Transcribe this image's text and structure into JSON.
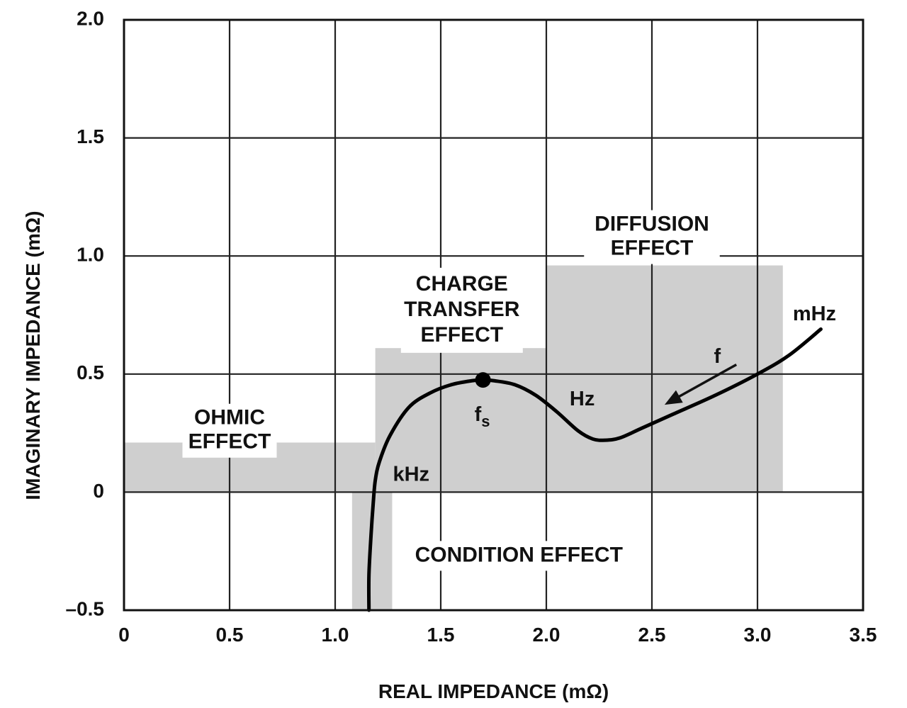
{
  "chart_data": {
    "type": "line",
    "title": "",
    "xlabel": "REAL IMPEDANCE (mΩ)",
    "ylabel": "IMAGINARY IMPEDANCE (mΩ)",
    "xlim": [
      0,
      3.5
    ],
    "ylim": [
      -0.5,
      2.0
    ],
    "x_ticks": [
      0,
      0.5,
      1.0,
      1.5,
      2.0,
      2.5,
      3.0,
      3.5
    ],
    "x_tick_labels": [
      "0",
      "0.5",
      "1.0",
      "1.5",
      "2.0",
      "2.5",
      "3.0",
      "3.5"
    ],
    "y_ticks": [
      -0.5,
      0,
      0.5,
      1.0,
      1.5,
      2.0
    ],
    "y_tick_labels": [
      "–0.5",
      "0",
      "0.5",
      "1.0",
      "1.5",
      "2.0"
    ],
    "grid": true,
    "colors": {
      "curve": "#000000",
      "region": "#cfcfcf",
      "grid": "#222222"
    },
    "regions": [
      {
        "name": "OHMIC EFFECT",
        "lines": [
          "OHMIC",
          "EFFECT"
        ],
        "x": [
          0,
          1.19
        ],
        "y": [
          0,
          0.21
        ]
      },
      {
        "name": "CONDITION EFFECT",
        "lines": [
          "CONDITION EFFECT"
        ],
        "x": [
          1.08,
          1.27
        ],
        "y": [
          -0.5,
          0
        ]
      },
      {
        "name": "CHARGE TRANSFER EFFECT",
        "lines": [
          "CHARGE",
          "TRANSFER",
          "EFFECT"
        ],
        "x": [
          1.19,
          2.0
        ],
        "y": [
          0,
          0.61
        ]
      },
      {
        "name": "DIFFUSION EFFECT",
        "lines": [
          "DIFFUSION",
          "EFFECT"
        ],
        "x": [
          2.0,
          3.12
        ],
        "y": [
          0,
          0.96
        ]
      }
    ],
    "series": [
      {
        "x": [
          1.16,
          1.16,
          1.17,
          1.18,
          1.19,
          1.21,
          1.26,
          1.35,
          1.45,
          1.55,
          1.65,
          1.7,
          1.75,
          1.85,
          1.95,
          2.05,
          2.15,
          2.22,
          2.28,
          2.35,
          2.45,
          2.6,
          2.8,
          3.0,
          3.15,
          3.3
        ],
        "y": [
          -0.5,
          -0.35,
          -0.18,
          -0.05,
          0.05,
          0.13,
          0.24,
          0.36,
          0.42,
          0.455,
          0.472,
          0.475,
          0.472,
          0.455,
          0.41,
          0.34,
          0.26,
          0.225,
          0.22,
          0.23,
          0.27,
          0.33,
          0.41,
          0.5,
          0.58,
          0.69
        ]
      }
    ],
    "marker": {
      "x": 1.7,
      "y": 0.475,
      "label": "f",
      "sub": "s"
    },
    "annotations": [
      {
        "text": "kHz",
        "x": 1.36,
        "y": 0.07
      },
      {
        "text": "Hz",
        "x": 2.17,
        "y": 0.39
      },
      {
        "text": "mHz",
        "x": 3.27,
        "y": 0.75
      },
      {
        "text": "f",
        "x": 2.81,
        "y": 0.57
      }
    ],
    "arrow": {
      "from": [
        2.9,
        0.54
      ],
      "to": [
        2.56,
        0.37
      ]
    }
  }
}
